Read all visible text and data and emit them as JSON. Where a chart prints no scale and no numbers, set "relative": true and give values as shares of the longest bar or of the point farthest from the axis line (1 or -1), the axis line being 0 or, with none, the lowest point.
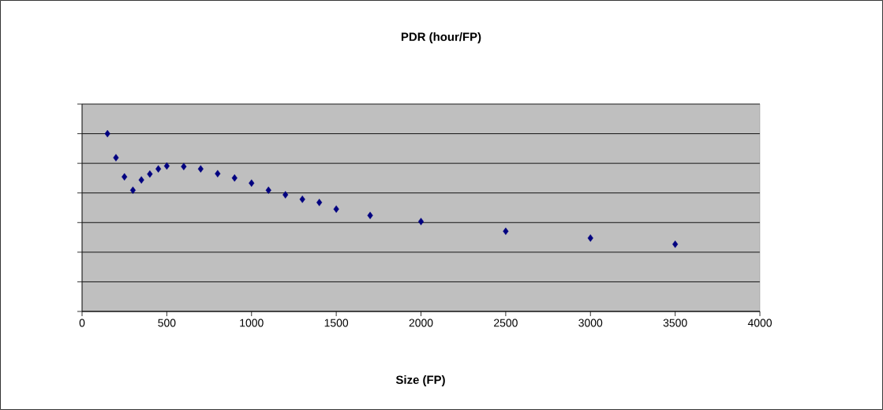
{
  "chart_data": {
    "type": "scatter",
    "title": "PDR (hour/FP)",
    "xlabel": "Size (FP)",
    "x": [
      150,
      200,
      250,
      300,
      350,
      400,
      450,
      500,
      600,
      700,
      800,
      900,
      1000,
      1100,
      1200,
      1300,
      1400,
      1500,
      1700,
      2000,
      2500,
      3000,
      3500
    ],
    "values": [
      1,
      0.865,
      0.757,
      0.682,
      0.74,
      0.773,
      0.802,
      0.818,
      0.815,
      0.802,
      0.775,
      0.751,
      0.722,
      0.682,
      0.656,
      0.631,
      0.613,
      0.576,
      0.54,
      0.506,
      0.451,
      0.413,
      0.378
    ],
    "color": "#000080",
    "marker": "diamond",
    "relative": true,
    "grid": "y",
    "tick_labels": "x",
    "xlim": [
      0,
      4000
    ],
    "xticks": [
      0,
      500,
      1000,
      1500,
      2000,
      2500,
      3000,
      3500,
      4000
    ]
  }
}
